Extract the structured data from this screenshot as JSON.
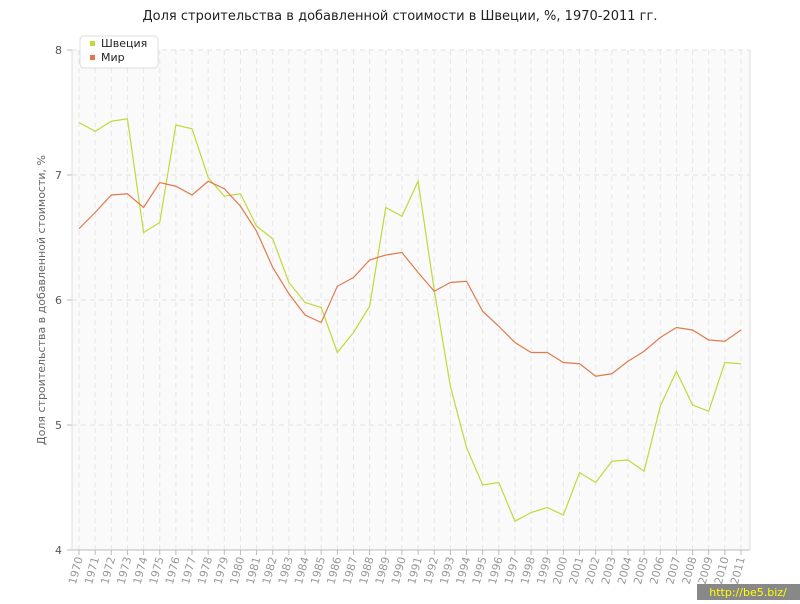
{
  "chart_data": {
    "type": "line",
    "title": "Доля строительства в добавленной стоимости в Швеции, %, 1970-2011 гг.",
    "y_label": "Доля строительства в добавленной стоимости, %",
    "watermark": "http://be5.biz/",
    "categories": [
      "1970",
      "1971",
      "1972",
      "1973",
      "1974",
      "1975",
      "1976",
      "1977",
      "1978",
      "1979",
      "1980",
      "1981",
      "1982",
      "1983",
      "1984",
      "1985",
      "1986",
      "1987",
      "1988",
      "1989",
      "1990",
      "1991",
      "1992",
      "1993",
      "1994",
      "1995",
      "1996",
      "1997",
      "1998",
      "1999",
      "2000",
      "2001",
      "2002",
      "2003",
      "2004",
      "2005",
      "2006",
      "2007",
      "2008",
      "2009",
      "2010",
      "2011"
    ],
    "series": [
      {
        "name": "Швеция",
        "color": "#c3d83a",
        "values": [
          7.42,
          7.35,
          7.43,
          7.45,
          6.54,
          6.62,
          7.4,
          7.37,
          6.98,
          6.83,
          6.85,
          6.59,
          6.49,
          6.14,
          5.98,
          5.94,
          5.58,
          5.74,
          5.95,
          6.74,
          6.67,
          6.95,
          6.08,
          5.31,
          4.82,
          4.52,
          4.54,
          4.23,
          4.3,
          4.34,
          4.28,
          4.62,
          4.54,
          4.71,
          4.72,
          4.63,
          5.15,
          5.43,
          5.16,
          5.11,
          5.5,
          5.49
        ]
      },
      {
        "name": "Мир",
        "color": "#e07a4e",
        "values": [
          6.57,
          6.7,
          6.84,
          6.85,
          6.74,
          6.94,
          6.91,
          6.84,
          6.95,
          6.89,
          6.75,
          6.55,
          6.26,
          6.05,
          5.88,
          5.82,
          6.11,
          6.18,
          6.32,
          6.36,
          6.38,
          6.22,
          6.07,
          6.14,
          6.15,
          5.91,
          5.79,
          5.66,
          5.58,
          5.58,
          5.5,
          5.49,
          5.39,
          5.41,
          5.51,
          5.59,
          5.7,
          5.78,
          5.76,
          5.68,
          5.67,
          5.76
        ]
      }
    ],
    "ylim": [
      4,
      8
    ],
    "yticks": [
      4,
      5,
      6,
      7,
      8
    ],
    "grid": true,
    "legend": "top-left"
  }
}
